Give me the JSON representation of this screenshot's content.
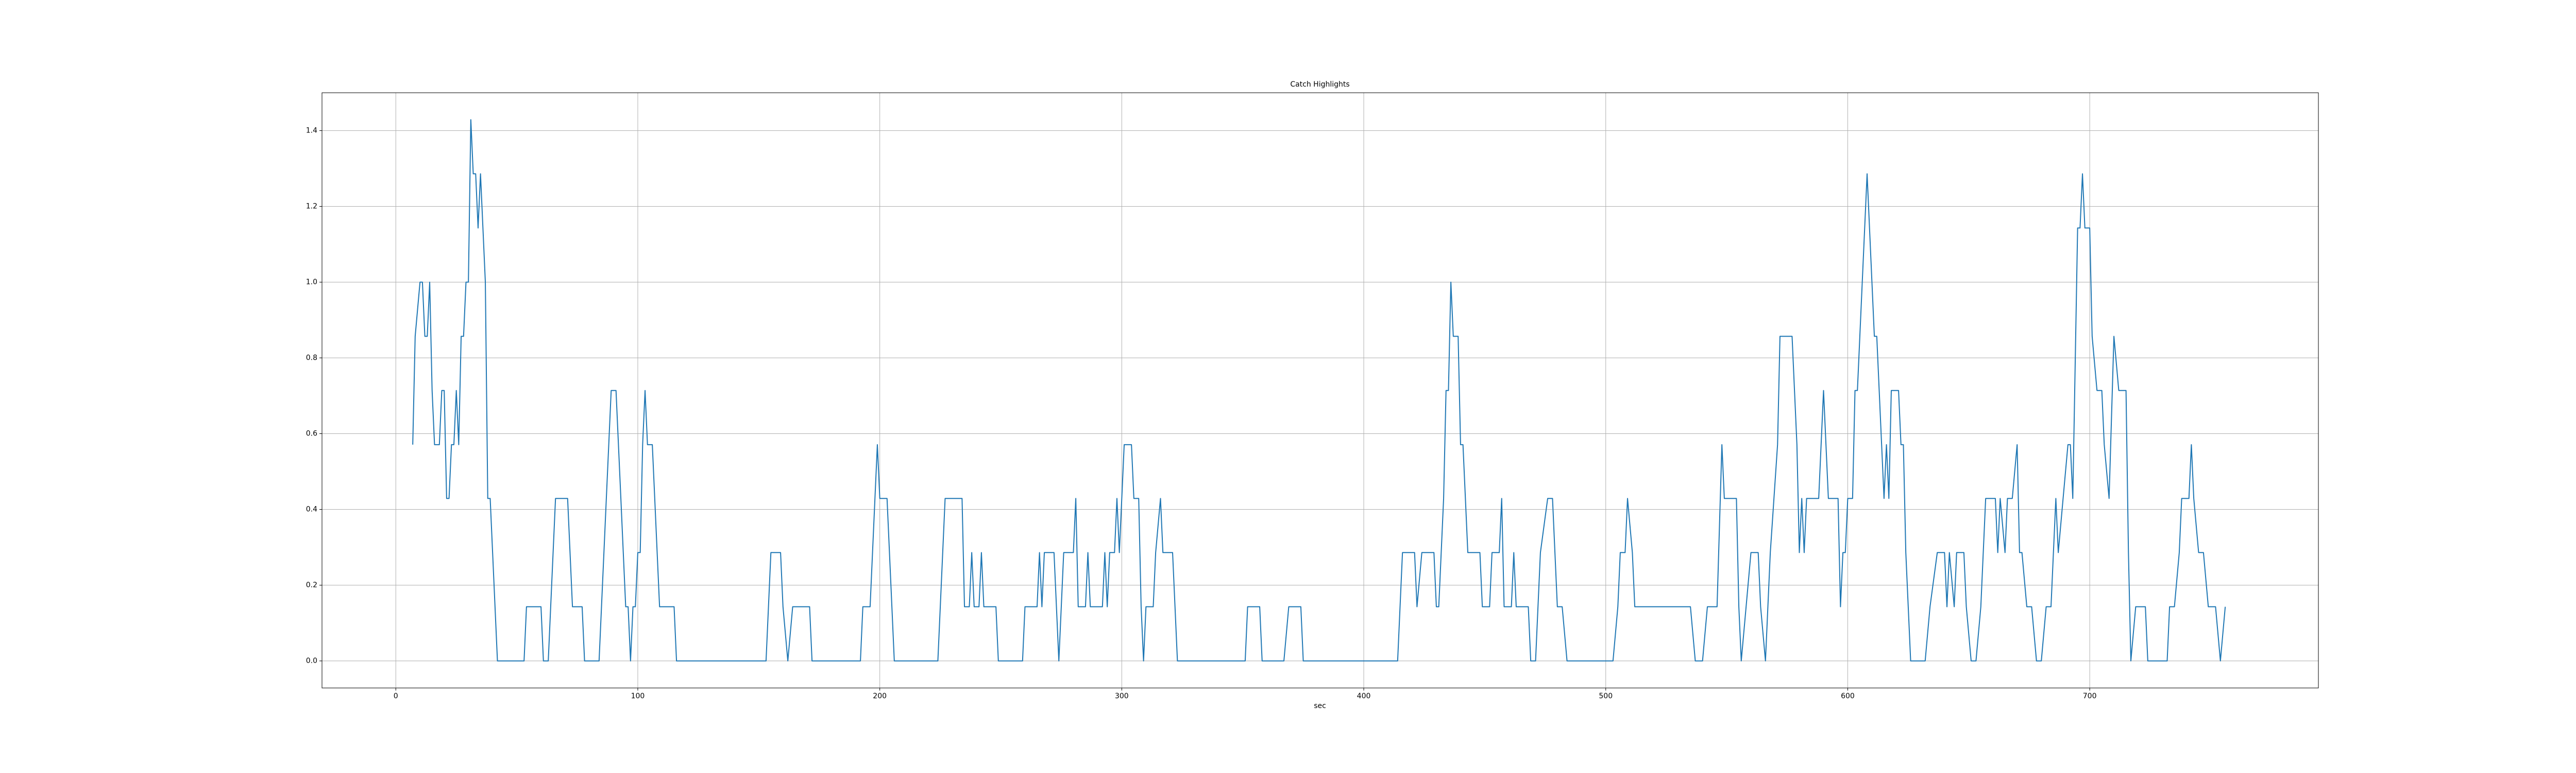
{
  "chart_data": {
    "type": "line",
    "title": "Catch Highlights",
    "xlabel": "sec",
    "color": "#1f77b4",
    "grid": true,
    "xlim": [
      -30.5,
      794.5
    ],
    "ylim": [
      -0.0714,
      1.5
    ],
    "xticks": [
      0,
      100,
      200,
      300,
      400,
      500,
      600,
      700
    ],
    "yticks": [
      {
        "value": 0,
        "label": "0.0"
      },
      0.2,
      0.4,
      0.6,
      0.8,
      {
        "value": 1,
        "label": "1.0"
      },
      1.2,
      1.4
    ],
    "x": [
      7,
      8,
      10,
      11,
      12,
      13,
      14,
      15,
      16,
      18,
      19,
      20,
      21,
      22,
      23,
      24,
      25,
      26,
      27,
      28,
      29,
      30,
      31,
      32,
      33,
      34,
      35,
      37,
      38,
      39,
      40,
      41,
      42,
      53,
      54,
      60,
      61,
      63,
      65,
      66,
      71,
      72,
      73,
      77,
      78,
      84,
      86,
      87,
      88,
      89,
      91,
      92,
      93,
      94,
      95,
      96,
      97,
      98,
      99,
      100,
      101,
      102,
      103,
      104,
      106,
      107,
      108,
      109,
      115,
      116,
      153,
      154,
      155,
      159,
      160,
      162,
      164,
      171,
      172,
      192,
      193,
      196,
      198,
      199,
      200,
      203,
      205,
      206,
      224,
      225,
      227,
      234,
      235,
      237,
      238,
      239,
      241,
      242,
      243,
      248,
      249,
      259,
      260,
      265,
      266,
      267,
      268,
      272,
      273,
      274,
      276,
      280,
      281,
      282,
      285,
      286,
      287,
      292,
      293,
      294,
      295,
      297,
      298,
      299,
      300,
      301,
      304,
      305,
      307,
      308,
      309,
      310,
      313,
      314,
      316,
      317,
      321,
      322,
      323,
      351,
      352,
      357,
      358,
      367,
      369,
      374,
      375,
      414,
      416,
      421,
      422,
      424,
      429,
      430,
      431,
      432,
      433,
      434,
      435,
      436,
      437,
      439,
      440,
      441,
      442,
      443,
      448,
      449,
      452,
      453,
      456,
      457,
      458,
      461,
      462,
      463,
      468,
      469,
      471,
      473,
      476,
      478,
      480,
      482,
      484,
      503,
      505,
      506,
      508,
      509,
      511,
      512,
      535,
      537,
      540,
      542,
      546,
      548,
      549,
      554,
      555,
      556,
      558,
      560,
      563,
      564,
      566,
      568,
      571,
      572,
      577,
      579,
      580,
      581,
      582,
      583,
      588,
      590,
      592,
      596,
      597,
      598,
      599,
      600,
      602,
      603,
      604,
      606,
      608,
      610,
      611,
      612,
      614,
      615,
      616,
      617,
      618,
      621,
      622,
      623,
      624,
      625,
      626,
      632,
      634,
      637,
      640,
      641,
      642,
      644,
      645,
      648,
      649,
      651,
      653,
      655,
      656,
      657,
      661,
      662,
      663,
      665,
      666,
      668,
      670,
      671,
      672,
      674,
      676,
      678,
      680,
      682,
      684,
      686,
      687,
      689,
      691,
      692,
      693,
      695,
      696,
      697,
      698,
      700,
      701,
      703,
      705,
      706,
      708,
      710,
      712,
      715,
      716,
      717,
      719,
      723,
      724,
      732,
      733,
      735,
      737,
      738,
      741,
      742,
      743,
      745,
      747,
      749,
      752,
      754,
      756
    ],
    "values": [
      0.571,
      0.857,
      1,
      1,
      0.857,
      0.857,
      1,
      0.714,
      0.571,
      0.571,
      0.714,
      0.714,
      0.429,
      0.429,
      0.571,
      0.571,
      0.714,
      0.571,
      0.857,
      0.857,
      1,
      1,
      1.429,
      1.286,
      1.286,
      1.143,
      1.286,
      1,
      0.429,
      0.429,
      0.286,
      0.143,
      0,
      0,
      0.143,
      0.143,
      0,
      0,
      0.286,
      0.429,
      0.429,
      0.286,
      0.143,
      0.143,
      0,
      0,
      0.286,
      0.429,
      0.571,
      0.714,
      0.714,
      0.571,
      0.429,
      0.286,
      0.143,
      0.143,
      0,
      0.143,
      0.143,
      0.286,
      0.286,
      0.571,
      0.714,
      0.571,
      0.571,
      0.429,
      0.286,
      0.143,
      0.143,
      0,
      0,
      0.143,
      0.286,
      0.286,
      0.143,
      0,
      0.143,
      0.143,
      0,
      0,
      0.143,
      0.143,
      0.429,
      0.571,
      0.429,
      0.429,
      0.143,
      0,
      0,
      0.143,
      0.429,
      0.429,
      0.143,
      0.143,
      0.286,
      0.143,
      0.143,
      0.286,
      0.143,
      0.143,
      0,
      0,
      0.143,
      0.143,
      0.286,
      0.143,
      0.286,
      0.286,
      0.143,
      0,
      0.286,
      0.286,
      0.429,
      0.143,
      0.143,
      0.286,
      0.143,
      0.143,
      0.286,
      0.143,
      0.286,
      0.286,
      0.429,
      0.286,
      0.429,
      0.571,
      0.571,
      0.429,
      0.429,
      0.143,
      0,
      0.143,
      0.143,
      0.286,
      0.429,
      0.286,
      0.286,
      0.143,
      0,
      0,
      0.143,
      0.143,
      0,
      0,
      0.143,
      0.143,
      0,
      0,
      0.286,
      0.286,
      0.143,
      0.286,
      0.286,
      0.143,
      0.143,
      0.286,
      0.429,
      0.714,
      0.714,
      1,
      0.857,
      0.857,
      0.571,
      0.571,
      0.429,
      0.286,
      0.286,
      0.143,
      0.143,
      0.286,
      0.286,
      0.429,
      0.143,
      0.143,
      0.286,
      0.143,
      0.143,
      0,
      0,
      0.286,
      0.429,
      0.429,
      0.143,
      0.143,
      0,
      0,
      0.143,
      0.286,
      0.286,
      0.429,
      0.286,
      0.143,
      0.143,
      0,
      0,
      0.143,
      0.143,
      0.571,
      0.429,
      0.429,
      0.143,
      0,
      0.143,
      0.286,
      0.286,
      0.143,
      0,
      0.286,
      0.571,
      0.857,
      0.857,
      0.571,
      0.286,
      0.429,
      0.286,
      0.429,
      0.429,
      0.714,
      0.429,
      0.429,
      0.143,
      0.286,
      0.286,
      0.429,
      0.429,
      0.714,
      0.714,
      1,
      1.286,
      1,
      0.857,
      0.857,
      0.571,
      0.429,
      0.571,
      0.429,
      0.714,
      0.714,
      0.571,
      0.571,
      0.286,
      0.143,
      0,
      0,
      0.143,
      0.286,
      0.286,
      0.143,
      0.286,
      0.143,
      0.286,
      0.286,
      0.143,
      0,
      0,
      0.143,
      0.286,
      0.429,
      0.429,
      0.286,
      0.429,
      0.286,
      0.429,
      0.429,
      0.571,
      0.286,
      0.286,
      0.143,
      0.143,
      0,
      0,
      0.143,
      0.143,
      0.429,
      0.286,
      0.429,
      0.571,
      0.571,
      0.429,
      1.143,
      1.143,
      1.286,
      1.143,
      1.143,
      0.857,
      0.714,
      0.714,
      0.571,
      0.429,
      0.857,
      0.714,
      0.714,
      0.286,
      0,
      0.143,
      0.143,
      0,
      0,
      0.143,
      0.143,
      0.286,
      0.429,
      0.429,
      0.571,
      0.429,
      0.286,
      0.286,
      0.143,
      0.143,
      0,
      0.143
    ]
  }
}
